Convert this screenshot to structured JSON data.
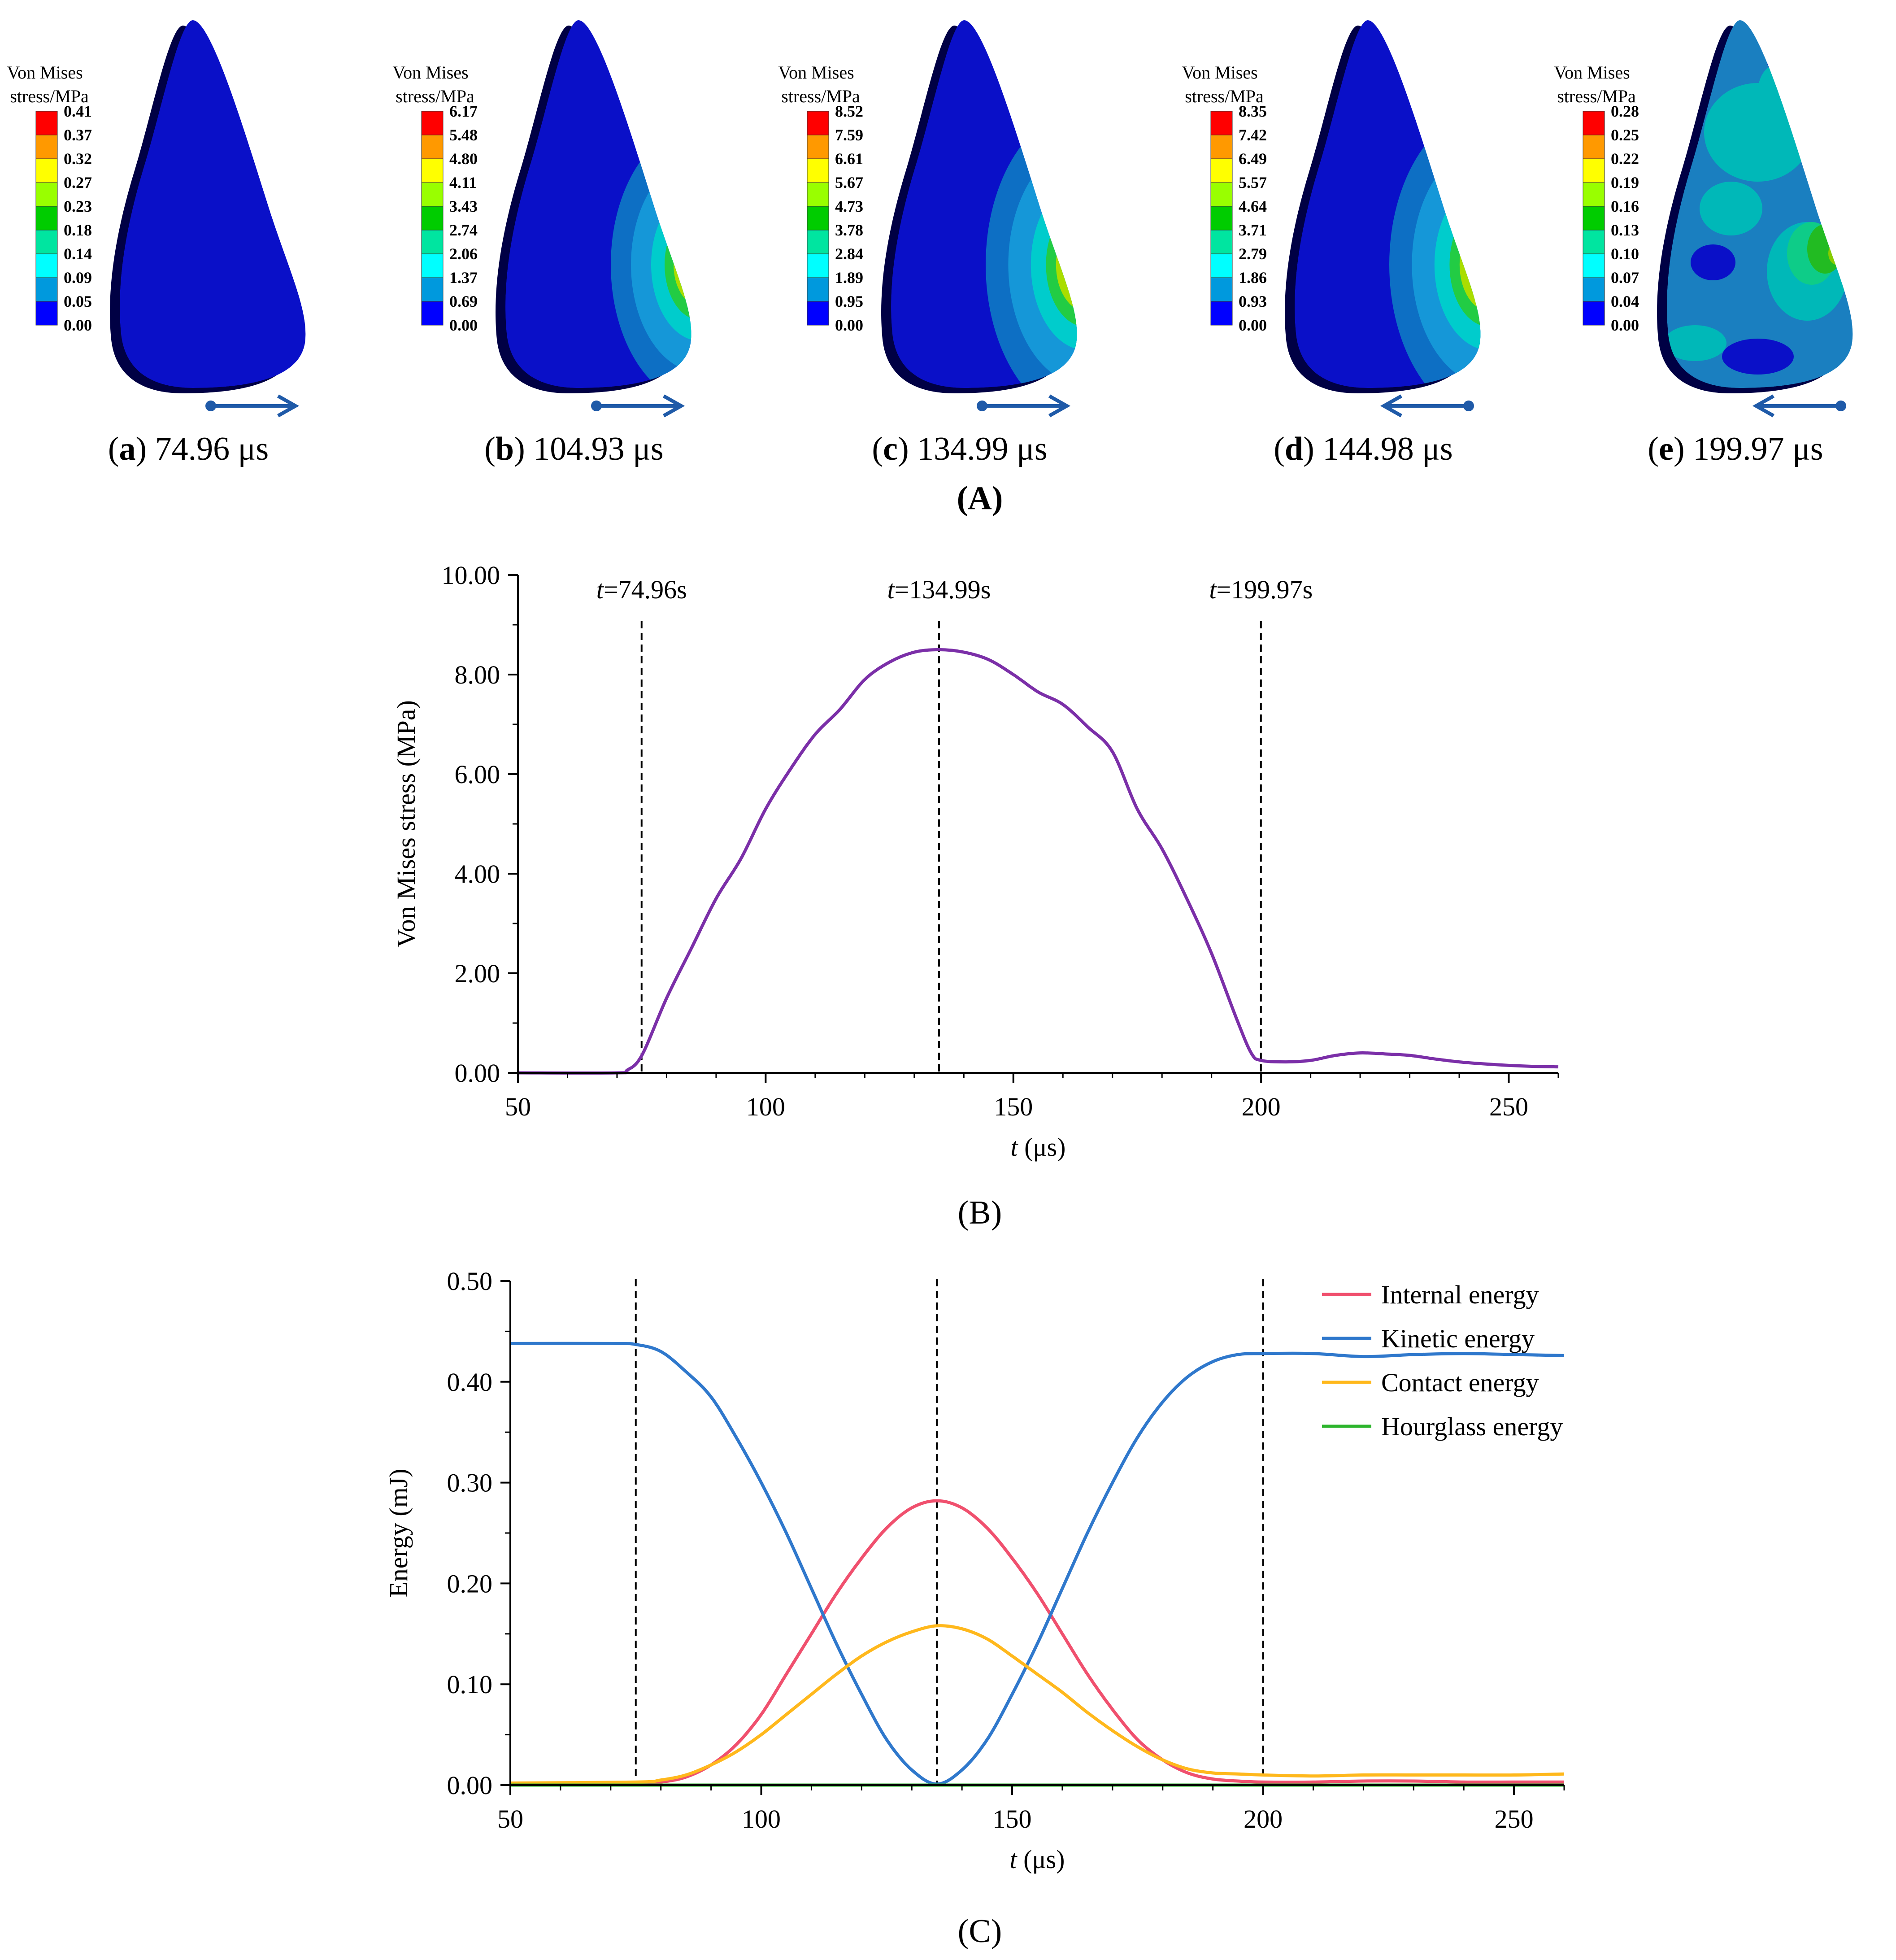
{
  "panel_a": {
    "label": "(A)",
    "colorbar_title": [
      "Von Mises",
      "stress/MPa"
    ],
    "colors": [
      "#ff0000",
      "#ff9900",
      "#ffff00",
      "#99ff00",
      "#00cc00",
      "#00e5a0",
      "#00ffff",
      "#0099dd",
      "#0000ff"
    ],
    "subplots": [
      {
        "letter": "a",
        "time": "74.96 μs",
        "direction": "right",
        "contour": "spot",
        "ticks": [
          "0.41",
          "0.37",
          "0.32",
          "0.27",
          "0.23",
          "0.18",
          "0.14",
          "0.09",
          "0.05",
          "0.00"
        ]
      },
      {
        "letter": "b",
        "time": "104.93 μs",
        "direction": "right",
        "contour": "medium",
        "ticks": [
          "6.17",
          "5.48",
          "4.80",
          "4.11",
          "3.43",
          "2.74",
          "2.06",
          "1.37",
          "0.69",
          "0.00"
        ]
      },
      {
        "letter": "c",
        "time": "134.99 μs",
        "direction": "right",
        "contour": "large",
        "ticks": [
          "8.52",
          "7.59",
          "6.61",
          "5.67",
          "4.73",
          "3.78",
          "2.84",
          "1.89",
          "0.95",
          "0.00"
        ]
      },
      {
        "letter": "d",
        "time": "144.98 μs",
        "direction": "left",
        "contour": "large",
        "ticks": [
          "8.35",
          "7.42",
          "6.49",
          "5.57",
          "4.64",
          "3.71",
          "2.79",
          "1.86",
          "0.93",
          "0.00"
        ]
      },
      {
        "letter": "e",
        "time": "199.97 μs",
        "direction": "left",
        "contour": "mottled",
        "ticks": [
          "0.28",
          "0.25",
          "0.22",
          "0.19",
          "0.16",
          "0.13",
          "0.10",
          "0.07",
          "0.04",
          "0.00"
        ]
      }
    ]
  },
  "chart_data": [
    {
      "id": "B",
      "type": "line",
      "label": "(B)",
      "xlabel_italic": "t",
      "xlabel_rest": " (μs)",
      "ylabel": "Von Mises stress (MPa)",
      "xlim": [
        50,
        260
      ],
      "ylim": [
        0,
        10
      ],
      "x_ticks": [
        50,
        100,
        150,
        200,
        250
      ],
      "y_ticks": [
        "0.00",
        "2.00",
        "4.00",
        "6.00",
        "8.00",
        "10.00"
      ],
      "vlines": [
        74.96,
        134.99,
        199.97
      ],
      "vline_labels": [
        {
          "italic": "t",
          "rest": "=74.96s"
        },
        {
          "italic": "t",
          "rest": "=134.99s"
        },
        {
          "italic": "t",
          "rest": "=199.97s"
        }
      ],
      "series": [
        {
          "color": "#7b2fa8",
          "points": [
            [
              50,
              0
            ],
            [
              70,
              0
            ],
            [
              72,
              0.05
            ],
            [
              75,
              0.35
            ],
            [
              80,
              1.5
            ],
            [
              85,
              2.5
            ],
            [
              90,
              3.5
            ],
            [
              95,
              4.3
            ],
            [
              100,
              5.3
            ],
            [
              105,
              6.1
            ],
            [
              110,
              6.8
            ],
            [
              115,
              7.3
            ],
            [
              120,
              7.9
            ],
            [
              125,
              8.25
            ],
            [
              130,
              8.45
            ],
            [
              135,
              8.5
            ],
            [
              140,
              8.45
            ],
            [
              145,
              8.3
            ],
            [
              150,
              8.0
            ],
            [
              155,
              7.65
            ],
            [
              160,
              7.4
            ],
            [
              165,
              6.95
            ],
            [
              170,
              6.45
            ],
            [
              175,
              5.3
            ],
            [
              180,
              4.5
            ],
            [
              185,
              3.5
            ],
            [
              190,
              2.4
            ],
            [
              195,
              1.1
            ],
            [
              198,
              0.4
            ],
            [
              200,
              0.25
            ],
            [
              205,
              0.22
            ],
            [
              210,
              0.25
            ],
            [
              215,
              0.35
            ],
            [
              220,
              0.4
            ],
            [
              225,
              0.38
            ],
            [
              230,
              0.35
            ],
            [
              235,
              0.28
            ],
            [
              240,
              0.22
            ],
            [
              245,
              0.18
            ],
            [
              250,
              0.15
            ],
            [
              255,
              0.13
            ],
            [
              260,
              0.12
            ]
          ]
        }
      ]
    },
    {
      "id": "C",
      "type": "line",
      "label": "(C)",
      "xlabel_italic": "t",
      "xlabel_rest": " (μs)",
      "ylabel": "Energy (mJ)",
      "xlim": [
        50,
        260
      ],
      "ylim": [
        0,
        0.5
      ],
      "x_ticks": [
        50,
        100,
        150,
        200,
        250
      ],
      "y_ticks": [
        "0.00",
        "0.10",
        "0.20",
        "0.30",
        "0.40",
        "0.50"
      ],
      "vlines": [
        75,
        135,
        200
      ],
      "legend_position": "top-right",
      "series": [
        {
          "name": "Internal energy",
          "color": "#f0506e",
          "points": [
            [
              50,
              0.002
            ],
            [
              75,
              0.002
            ],
            [
              80,
              0.003
            ],
            [
              85,
              0.008
            ],
            [
              90,
              0.02
            ],
            [
              95,
              0.04
            ],
            [
              100,
              0.07
            ],
            [
              105,
              0.11
            ],
            [
              110,
              0.15
            ],
            [
              115,
              0.19
            ],
            [
              120,
              0.225
            ],
            [
              125,
              0.255
            ],
            [
              130,
              0.275
            ],
            [
              135,
              0.282
            ],
            [
              140,
              0.275
            ],
            [
              145,
              0.255
            ],
            [
              150,
              0.225
            ],
            [
              155,
              0.19
            ],
            [
              160,
              0.15
            ],
            [
              165,
              0.11
            ],
            [
              170,
              0.075
            ],
            [
              175,
              0.045
            ],
            [
              180,
              0.025
            ],
            [
              185,
              0.012
            ],
            [
              190,
              0.006
            ],
            [
              195,
              0.004
            ],
            [
              200,
              0.003
            ],
            [
              210,
              0.003
            ],
            [
              220,
              0.004
            ],
            [
              230,
              0.004
            ],
            [
              240,
              0.003
            ],
            [
              250,
              0.003
            ],
            [
              260,
              0.003
            ]
          ]
        },
        {
          "name": "Kinetic  energy",
          "color": "#2f78cc",
          "points": [
            [
              50,
              0.438
            ],
            [
              70,
              0.438
            ],
            [
              75,
              0.437
            ],
            [
              80,
              0.43
            ],
            [
              85,
              0.41
            ],
            [
              90,
              0.385
            ],
            [
              95,
              0.345
            ],
            [
              100,
              0.3
            ],
            [
              105,
              0.25
            ],
            [
              110,
              0.195
            ],
            [
              115,
              0.14
            ],
            [
              120,
              0.09
            ],
            [
              125,
              0.045
            ],
            [
              130,
              0.015
            ],
            [
              135,
              0.001
            ],
            [
              140,
              0.015
            ],
            [
              145,
              0.045
            ],
            [
              150,
              0.09
            ],
            [
              155,
              0.14
            ],
            [
              160,
              0.195
            ],
            [
              165,
              0.25
            ],
            [
              170,
              0.3
            ],
            [
              175,
              0.345
            ],
            [
              180,
              0.38
            ],
            [
              185,
              0.405
            ],
            [
              190,
              0.42
            ],
            [
              195,
              0.427
            ],
            [
              200,
              0.428
            ],
            [
              210,
              0.428
            ],
            [
              220,
              0.425
            ],
            [
              230,
              0.427
            ],
            [
              240,
              0.428
            ],
            [
              250,
              0.427
            ],
            [
              260,
              0.426
            ]
          ]
        },
        {
          "name": "Contact energy",
          "color": "#ffb81c",
          "points": [
            [
              50,
              0.002
            ],
            [
              75,
              0.003
            ],
            [
              80,
              0.005
            ],
            [
              85,
              0.01
            ],
            [
              90,
              0.02
            ],
            [
              95,
              0.033
            ],
            [
              100,
              0.05
            ],
            [
              105,
              0.07
            ],
            [
              110,
              0.09
            ],
            [
              115,
              0.11
            ],
            [
              120,
              0.128
            ],
            [
              125,
              0.142
            ],
            [
              130,
              0.152
            ],
            [
              135,
              0.158
            ],
            [
              140,
              0.155
            ],
            [
              145,
              0.145
            ],
            [
              150,
              0.128
            ],
            [
              155,
              0.11
            ],
            [
              160,
              0.092
            ],
            [
              165,
              0.072
            ],
            [
              170,
              0.054
            ],
            [
              175,
              0.038
            ],
            [
              180,
              0.025
            ],
            [
              185,
              0.016
            ],
            [
              190,
              0.012
            ],
            [
              195,
              0.011
            ],
            [
              200,
              0.01
            ],
            [
              210,
              0.009
            ],
            [
              220,
              0.01
            ],
            [
              230,
              0.01
            ],
            [
              240,
              0.01
            ],
            [
              250,
              0.01
            ],
            [
              260,
              0.011
            ]
          ]
        },
        {
          "name": "Hourglass energy",
          "color": "#2db52d",
          "points": [
            [
              50,
              0.0
            ],
            [
              260,
              0.0
            ]
          ]
        }
      ]
    }
  ]
}
